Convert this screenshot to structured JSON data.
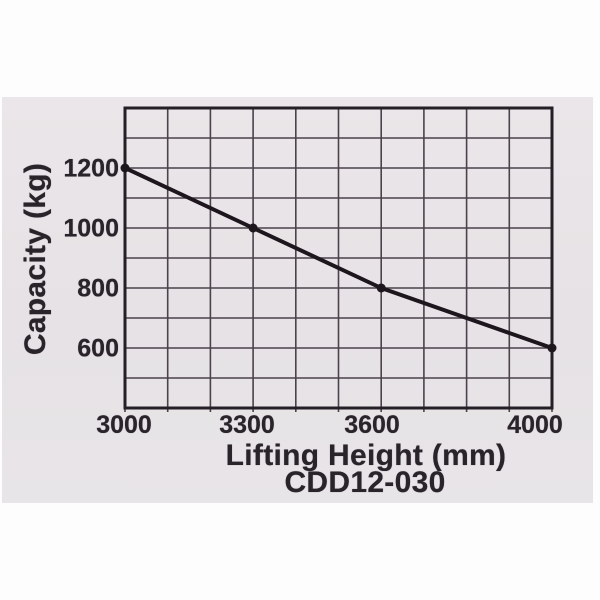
{
  "page": {
    "background": "#ffffff"
  },
  "photo": {
    "background": "#e6e2e5"
  },
  "chart_data": {
    "type": "line",
    "title": "",
    "xlabel": "Lifting Height (mm)",
    "ylabel": "Capacity (kg)",
    "model": "CDD12-030",
    "x": [
      3000,
      3300,
      3600,
      4000
    ],
    "y": [
      1200,
      1000,
      800,
      600
    ],
    "xlim": [
      3000,
      4000
    ],
    "ylim": [
      400,
      1400
    ],
    "x_gridline_step": 100,
    "y_gridline_step": 100,
    "x_tick_labels": [
      "3000",
      "3300",
      "3600",
      "4000"
    ],
    "x_tick_values": [
      3000,
      3300,
      3600,
      4000
    ],
    "y_tick_labels": [
      "1200",
      "1000",
      "800",
      "600"
    ],
    "y_tick_values": [
      1200,
      1000,
      800,
      600
    ],
    "grid": true,
    "legend": false,
    "marker": "dot",
    "line_color": "#1d171d",
    "axis_color": "#241e25",
    "grid_color": "#4b424b",
    "text_color": "#29232a"
  }
}
